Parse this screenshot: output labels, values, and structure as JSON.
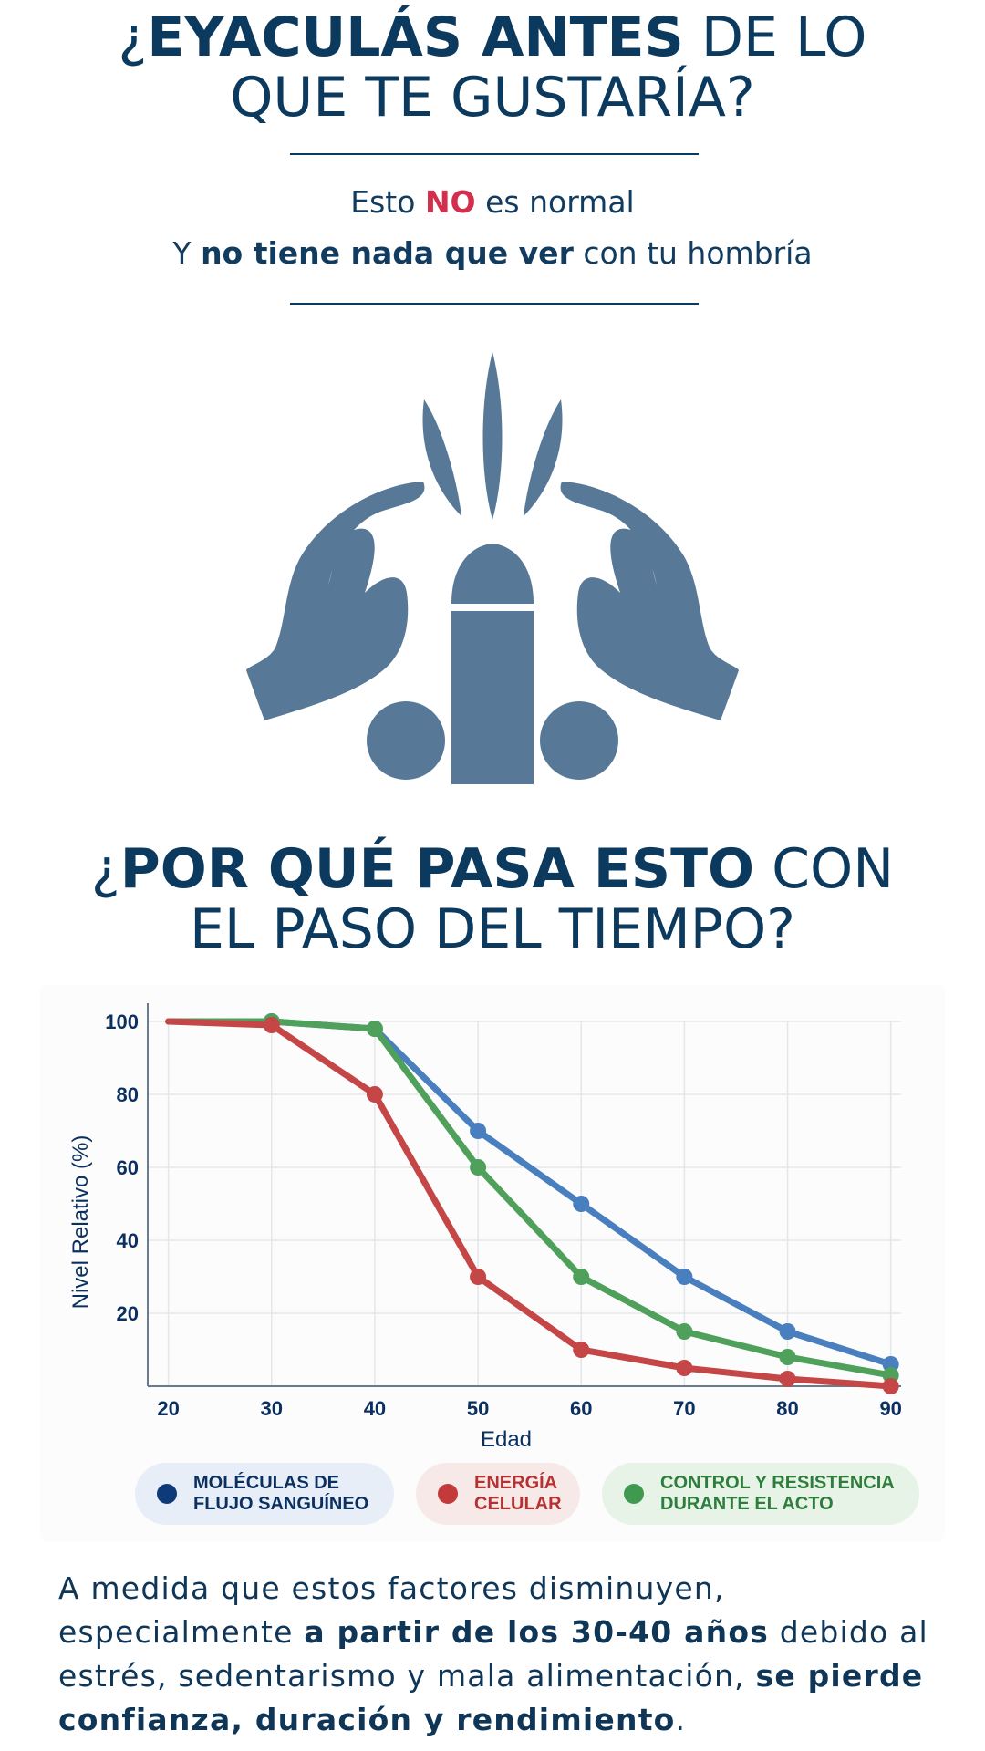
{
  "header": {
    "title_prefix": "¿",
    "title_bold": "EYACULÁS ANTES",
    "title_rest_line1": " DE LO",
    "title_line2": "QUE TE GUSTARÍA?"
  },
  "subtitle": {
    "line1_pre": "Esto ",
    "line1_highlight": "NO",
    "line1_post": " es normal",
    "line2_pre": "Y ",
    "line2_bold": "no tiene nada que ver",
    "line2_post": " con tu hombría"
  },
  "section": {
    "title_prefix": "¿",
    "title_bold": "POR QUÉ PASA ESTO",
    "title_rest_line1": " CON",
    "title_line2": "EL PASO DEL TIEMPO?"
  },
  "colors": {
    "navy": "#0b3a5e",
    "accent_red": "#d32f4d",
    "icon": "#577896",
    "blue_series": "#4a7fbf",
    "red_series": "#c44646",
    "green_series": "#4fa05a"
  },
  "chart_data": {
    "type": "line",
    "title": "",
    "xlabel": "Edad",
    "ylabel": "Nivel Relativo (%)",
    "x": [
      20,
      30,
      40,
      50,
      60,
      70,
      80,
      90
    ],
    "xticks": [
      20,
      30,
      40,
      50,
      60,
      70,
      80,
      90
    ],
    "yticks": [
      100,
      80,
      60,
      40,
      20
    ],
    "xlim": [
      18,
      91
    ],
    "ylim": [
      0,
      100
    ],
    "grid": true,
    "legend_position": "bottom",
    "series": [
      {
        "name": "MOLÉCULAS DE\nFLUJO SANGUÍNEO",
        "color": "#4a7fbf",
        "dot": "#0f3a7a",
        "bg": "#e7eef8",
        "text": "#0b2f5e",
        "values": [
          100,
          100,
          98,
          70,
          50,
          30,
          15,
          6
        ]
      },
      {
        "name": "ENERGÍA\nCELULAR",
        "color": "#c44646",
        "dot": "#c23a3a",
        "bg": "#f8e9e9",
        "text": "#b53232",
        "values": [
          100,
          99,
          80,
          30,
          10,
          5,
          2,
          0
        ]
      },
      {
        "name": "CONTROL Y RESISTENCIA\nDURANTE EL ACTO",
        "color": "#4fa05a",
        "dot": "#3f9a4f",
        "bg": "#e6f3e6",
        "text": "#2f7d3c",
        "values": [
          100,
          100,
          98,
          60,
          30,
          15,
          8,
          3
        ]
      }
    ]
  },
  "body": {
    "t1": "A medida que estos factores disminuyen, especialmente ",
    "b1": "a partir de los 30-40 años",
    "t2": " debido al estrés, sedentarismo y mala alimentación, ",
    "b2": "se pierde confianza, duración y rendimiento",
    "t3": "."
  }
}
